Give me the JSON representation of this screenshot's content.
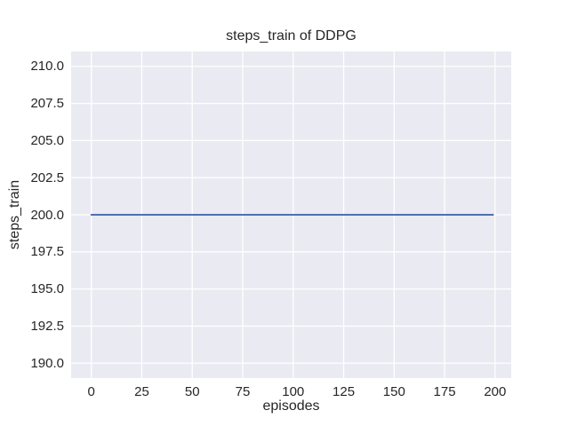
{
  "chart_data": {
    "type": "line",
    "title": "steps_train of DDPG",
    "xlabel": "episodes",
    "ylabel": "steps_train",
    "xlim": [
      -10,
      208
    ],
    "ylim": [
      189,
      211
    ],
    "grid": true,
    "legend": false,
    "xticks": {
      "values": [
        0,
        25,
        50,
        75,
        100,
        125,
        150,
        175,
        200
      ],
      "labels": [
        "0",
        "25",
        "50",
        "75",
        "100",
        "125",
        "150",
        "175",
        "200"
      ]
    },
    "yticks": {
      "values": [
        190.0,
        192.5,
        195.0,
        197.5,
        200.0,
        202.5,
        205.0,
        207.5,
        210.0
      ],
      "labels": [
        "190.0",
        "192.5",
        "195.0",
        "197.5",
        "200.0",
        "202.5",
        "205.0",
        "207.5",
        "210.0"
      ]
    },
    "series": [
      {
        "name": "steps_train",
        "color": "#4c72b0",
        "x": [
          0,
          199
        ],
        "y": [
          200,
          200
        ]
      }
    ],
    "colors": {
      "figure_bg": "#ffffff",
      "plot_bg": "#eaeaf2",
      "grid": "#ffffff",
      "text": "#262626"
    }
  }
}
